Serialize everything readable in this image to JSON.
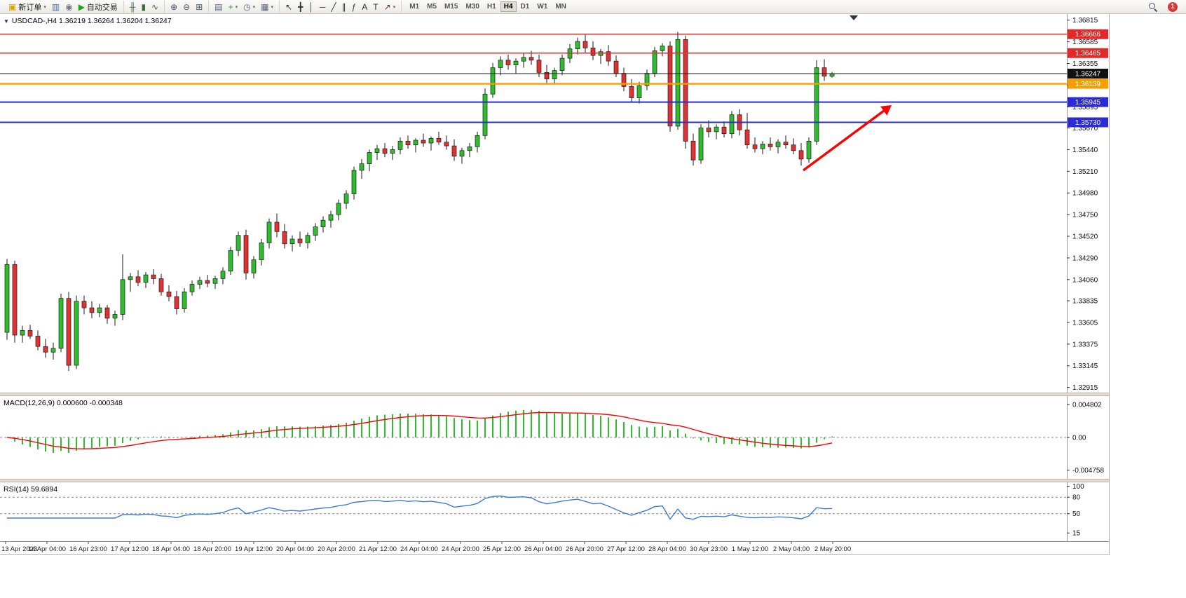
{
  "icons": {
    "dropdown": "▼"
  },
  "toolbar": {
    "groups": [
      {
        "name": "trading",
        "items": [
          {
            "name": "new-order-button",
            "glyph": "▣",
            "glyph_color": "#d9a400",
            "label": "新订单",
            "caret": "▾"
          },
          {
            "name": "charts-button",
            "glyph": "▥",
            "glyph_color": "#4a6fa5"
          },
          {
            "name": "navigator-button",
            "glyph": "◉",
            "glyph_color": "#767d88"
          },
          {
            "name": "auto-trading-button",
            "glyph": "▶",
            "glyph_color": "#1fa51f",
            "label": "自动交易"
          }
        ]
      },
      {
        "name": "chart-types",
        "items": [
          {
            "name": "ohlc-bars-button",
            "glyph": "╫",
            "glyph_color": "#3c6e3c"
          },
          {
            "name": "candlestick-button",
            "glyph": "▮",
            "glyph_color": "#3c6e3c"
          },
          {
            "name": "line-chart-button",
            "glyph": "∿",
            "glyph_color": "#3c6e3c"
          }
        ]
      },
      {
        "name": "zoom",
        "items": [
          {
            "name": "zoom-in-button",
            "glyph": "⊕",
            "glyph_color": "#44506a"
          },
          {
            "name": "zoom-out-button",
            "glyph": "⊖",
            "glyph_color": "#44506a"
          },
          {
            "name": "tile-windows-button",
            "glyph": "⊞",
            "glyph_color": "#44506a"
          }
        ]
      },
      {
        "name": "chart-management",
        "items": [
          {
            "name": "arrange-windows-button",
            "glyph": "▤",
            "glyph_color": "#55617a"
          },
          {
            "name": "indicators-button",
            "glyph": "+",
            "glyph_color": "#1fa51f",
            "caret": "▾"
          },
          {
            "name": "periods-button",
            "glyph": "◷",
            "glyph_color": "#55617a",
            "caret": "▾"
          },
          {
            "name": "templates-button",
            "glyph": "▦",
            "glyph_color": "#55617a",
            "caret": "▾"
          }
        ]
      },
      {
        "name": "drawing-tools",
        "items": [
          {
            "name": "cursor-button",
            "glyph": "↖",
            "glyph_color": "#333333"
          },
          {
            "name": "crosshair-button",
            "glyph": "╋",
            "glyph_color": "#333333"
          },
          {
            "name": "vertical-line-button",
            "glyph": "│",
            "glyph_color": "#333333"
          },
          {
            "name": "horizontal-line-button",
            "glyph": "─",
            "glyph_color": "#333333"
          },
          {
            "name": "trendline-button",
            "glyph": "╱",
            "glyph_color": "#333333"
          },
          {
            "name": "equidistant-channel-button",
            "glyph": "∥",
            "glyph_color": "#333333"
          },
          {
            "name": "fibonacci-button",
            "glyph": "ƒ",
            "glyph_color": "#333333"
          },
          {
            "name": "text-button",
            "glyph": "A",
            "glyph_color": "#333333"
          },
          {
            "name": "text-label-button",
            "glyph": "T",
            "glyph_color": "#333333"
          },
          {
            "name": "arrows-button",
            "glyph": "↗",
            "glyph_color": "#8a2525",
            "caret": "▾"
          }
        ]
      }
    ],
    "timeframes": {
      "options": [
        "M1",
        "M5",
        "M15",
        "M30",
        "H1",
        "H4",
        "D1",
        "W1",
        "MN"
      ],
      "active": "H4"
    },
    "right": {
      "notification_count": "1"
    }
  },
  "chart_data": {
    "type": "candlestick",
    "symbol": "USDCAD",
    "timeframe": "H4",
    "title": "USDCAD-,H4  1.36219 1.36264 1.36204 1.36247",
    "bull_color": "#2DBE2D",
    "bear_color": "#E03232",
    "arrow_color": "#FF0000",
    "price_ticks": [
      "1.36815",
      "1.36585",
      "1.36355",
      "1.36125",
      "1.35895",
      "1.35670",
      "1.35440",
      "1.35210",
      "1.34980",
      "1.34750",
      "1.34520",
      "1.34290",
      "1.34060",
      "1.33835",
      "1.33605",
      "1.33375",
      "1.33145",
      "1.32915"
    ],
    "levels": [
      {
        "price": 1.36666,
        "badge": "1.36666",
        "color": "#E02A2A",
        "width": 1.4
      },
      {
        "price": 1.36465,
        "badge": "1.36465",
        "color": "#E02A2A",
        "width": 1.4
      },
      {
        "price": 1.36139,
        "badge": "1.36139",
        "color": "#F59E00",
        "width": 2.4
      },
      {
        "price": 1.35945,
        "badge": "1.35945",
        "color": "#2B2BD4",
        "width": 2
      },
      {
        "price": 1.3573,
        "badge": "1.35730",
        "color": "#2B2BD4",
        "width": 2
      }
    ],
    "current_price": {
      "price": 1.36247,
      "badge": "1.36247",
      "color": "#1A1A1A"
    },
    "candles": [
      [
        1.335,
        1.3428,
        1.3342,
        1.3422
      ],
      [
        1.3422,
        1.3426,
        1.3339,
        1.3347
      ],
      [
        1.3347,
        1.3357,
        1.3339,
        1.3352
      ],
      [
        1.3352,
        1.3358,
        1.3343,
        1.3346
      ],
      [
        1.3346,
        1.3352,
        1.3331,
        1.3335
      ],
      [
        1.3335,
        1.3343,
        1.3323,
        1.3329
      ],
      [
        1.3329,
        1.3339,
        1.3321,
        1.3333
      ],
      [
        1.3333,
        1.3391,
        1.3329,
        1.3386
      ],
      [
        1.3386,
        1.3393,
        1.3309,
        1.3315
      ],
      [
        1.3315,
        1.3389,
        1.3311,
        1.3383
      ],
      [
        1.3383,
        1.3389,
        1.3369,
        1.3376
      ],
      [
        1.3376,
        1.3383,
        1.3365,
        1.3371
      ],
      [
        1.3371,
        1.338,
        1.3366,
        1.3376
      ],
      [
        1.3376,
        1.3379,
        1.3359,
        1.3365
      ],
      [
        1.3365,
        1.3373,
        1.3357,
        1.3369
      ],
      [
        1.3369,
        1.3433,
        1.3363,
        1.3406
      ],
      [
        1.3406,
        1.3413,
        1.3393,
        1.3409
      ],
      [
        1.3409,
        1.3416,
        1.3399,
        1.3403
      ],
      [
        1.3403,
        1.3414,
        1.3397,
        1.3411
      ],
      [
        1.3411,
        1.3417,
        1.3401,
        1.3407
      ],
      [
        1.3407,
        1.3412,
        1.3389,
        1.3393
      ],
      [
        1.3393,
        1.34,
        1.3383,
        1.3388
      ],
      [
        1.3388,
        1.3394,
        1.3369,
        1.3375
      ],
      [
        1.3375,
        1.3397,
        1.3371,
        1.3393
      ],
      [
        1.3393,
        1.3405,
        1.3389,
        1.3401
      ],
      [
        1.3401,
        1.3409,
        1.3396,
        1.3405
      ],
      [
        1.3405,
        1.3411,
        1.3398,
        1.3402
      ],
      [
        1.3402,
        1.341,
        1.3396,
        1.3407
      ],
      [
        1.3407,
        1.3419,
        1.3401,
        1.3415
      ],
      [
        1.3415,
        1.3441,
        1.3411,
        1.3437
      ],
      [
        1.3437,
        1.3457,
        1.3431,
        1.3453
      ],
      [
        1.3453,
        1.3459,
        1.3406,
        1.3413
      ],
      [
        1.3413,
        1.3431,
        1.3407,
        1.3427
      ],
      [
        1.3427,
        1.3449,
        1.3421,
        1.3445
      ],
      [
        1.3445,
        1.3471,
        1.3439,
        1.3467
      ],
      [
        1.3467,
        1.3476,
        1.3451,
        1.3457
      ],
      [
        1.3457,
        1.3465,
        1.3439,
        1.3444
      ],
      [
        1.3444,
        1.3453,
        1.3436,
        1.3449
      ],
      [
        1.3449,
        1.3457,
        1.3441,
        1.3445
      ],
      [
        1.3445,
        1.3456,
        1.3439,
        1.3453
      ],
      [
        1.3453,
        1.3466,
        1.3447,
        1.3462
      ],
      [
        1.3462,
        1.3473,
        1.3456,
        1.3469
      ],
      [
        1.3469,
        1.3479,
        1.3461,
        1.3475
      ],
      [
        1.3475,
        1.3491,
        1.3469,
        1.3487
      ],
      [
        1.3487,
        1.3501,
        1.3481,
        1.3497
      ],
      [
        1.3497,
        1.3526,
        1.3491,
        1.3522
      ],
      [
        1.3522,
        1.3534,
        1.3513,
        1.3529
      ],
      [
        1.3529,
        1.3544,
        1.3521,
        1.3541
      ],
      [
        1.3541,
        1.3549,
        1.3533,
        1.3545
      ],
      [
        1.3545,
        1.3551,
        1.3536,
        1.354
      ],
      [
        1.354,
        1.3548,
        1.3533,
        1.3544
      ],
      [
        1.3544,
        1.3557,
        1.3539,
        1.3553
      ],
      [
        1.3553,
        1.3559,
        1.3545,
        1.3549
      ],
      [
        1.3549,
        1.3556,
        1.3541,
        1.3554
      ],
      [
        1.3554,
        1.3561,
        1.3547,
        1.3551
      ],
      [
        1.3551,
        1.3558,
        1.3543,
        1.3556
      ],
      [
        1.3556,
        1.3563,
        1.3549,
        1.3552
      ],
      [
        1.3552,
        1.3559,
        1.3544,
        1.3548
      ],
      [
        1.3548,
        1.3555,
        1.3532,
        1.3537
      ],
      [
        1.3537,
        1.3546,
        1.3529,
        1.3543
      ],
      [
        1.3543,
        1.3551,
        1.3536,
        1.3547
      ],
      [
        1.3547,
        1.3563,
        1.3541,
        1.3559
      ],
      [
        1.3559,
        1.3609,
        1.3555,
        1.3603
      ],
      [
        1.3603,
        1.3636,
        1.3599,
        1.3631
      ],
      [
        1.3631,
        1.3643,
        1.3623,
        1.3639
      ],
      [
        1.3639,
        1.3645,
        1.3629,
        1.3634
      ],
      [
        1.3634,
        1.3641,
        1.3625,
        1.3638
      ],
      [
        1.3638,
        1.3646,
        1.3631,
        1.3642
      ],
      [
        1.3642,
        1.3649,
        1.3634,
        1.3639
      ],
      [
        1.3639,
        1.3645,
        1.3621,
        1.3626
      ],
      [
        1.3626,
        1.3634,
        1.3614,
        1.3619
      ],
      [
        1.3619,
        1.3631,
        1.3613,
        1.3628
      ],
      [
        1.3628,
        1.3645,
        1.3623,
        1.3641
      ],
      [
        1.3641,
        1.3656,
        1.3636,
        1.3651
      ],
      [
        1.3651,
        1.3663,
        1.3645,
        1.3659
      ],
      [
        1.3659,
        1.3666,
        1.3647,
        1.3652
      ],
      [
        1.3652,
        1.3659,
        1.3639,
        1.3644
      ],
      [
        1.3644,
        1.3651,
        1.3635,
        1.3648
      ],
      [
        1.3648,
        1.3655,
        1.3633,
        1.3638
      ],
      [
        1.3638,
        1.3644,
        1.3621,
        1.3625
      ],
      [
        1.3625,
        1.3631,
        1.3606,
        1.3611
      ],
      [
        1.3611,
        1.3619,
        1.3594,
        1.3599
      ],
      [
        1.3599,
        1.3616,
        1.3593,
        1.3612
      ],
      [
        1.3612,
        1.3629,
        1.3607,
        1.3625
      ],
      [
        1.3625,
        1.3653,
        1.3621,
        1.3649
      ],
      [
        1.3649,
        1.3657,
        1.3643,
        1.3654
      ],
      [
        1.3654,
        1.3659,
        1.3563,
        1.3569
      ],
      [
        1.3569,
        1.3669,
        1.3565,
        1.3661
      ],
      [
        1.3661,
        1.3665,
        1.3545,
        1.3553
      ],
      [
        1.3553,
        1.3561,
        1.3527,
        1.3533
      ],
      [
        1.3533,
        1.3571,
        1.3529,
        1.3567
      ],
      [
        1.3567,
        1.3575,
        1.3557,
        1.3563
      ],
      [
        1.3563,
        1.3571,
        1.3555,
        1.3568
      ],
      [
        1.3568,
        1.3574,
        1.3557,
        1.3561
      ],
      [
        1.3561,
        1.3585,
        1.3556,
        1.3581
      ],
      [
        1.3581,
        1.3587,
        1.3559,
        1.3565
      ],
      [
        1.3565,
        1.3583,
        1.3545,
        1.3549
      ],
      [
        1.3549,
        1.3557,
        1.3541,
        1.3545
      ],
      [
        1.3545,
        1.3553,
        1.3539,
        1.355
      ],
      [
        1.355,
        1.3557,
        1.3543,
        1.3547
      ],
      [
        1.3547,
        1.3555,
        1.354,
        1.3552
      ],
      [
        1.3552,
        1.3559,
        1.3545,
        1.3549
      ],
      [
        1.3549,
        1.3556,
        1.3539,
        1.3543
      ],
      [
        1.3543,
        1.3551,
        1.3527,
        1.3534
      ],
      [
        1.3534,
        1.3557,
        1.353,
        1.3553
      ],
      [
        1.3553,
        1.3639,
        1.3549,
        1.3631
      ],
      [
        1.3631,
        1.364,
        1.3617,
        1.3622
      ],
      [
        1.36219,
        1.36264,
        1.36204,
        1.36247
      ]
    ],
    "indicators": {
      "macd": {
        "label": "MACD(12,26,9) 0.000600 -0.000348",
        "params": [
          12,
          26,
          9
        ],
        "ticks": [
          "0.004802",
          "0.00",
          "-0.004758"
        ],
        "histogram_color": "#2DBE2D",
        "signal_color": "#FF0000"
      },
      "rsi": {
        "label": "RSI(14) 59.6894",
        "period": 14,
        "ticks": [
          "100",
          "80",
          "50",
          "15"
        ],
        "levels": [
          80,
          50
        ],
        "line_color": "#3A7BD5"
      }
    },
    "time_labels": [
      "13 Apr 2023",
      "14 Apr 04:00",
      "16 Apr 23:00",
      "17 Apr 12:00",
      "18 Apr 04:00",
      "18 Apr 20:00",
      "19 Apr 12:00",
      "20 Apr 04:00",
      "20 Apr 20:00",
      "21 Apr 12:00",
      "24 Apr 04:00",
      "24 Apr 20:00",
      "25 Apr 12:00",
      "26 Apr 04:00",
      "26 Apr 20:00",
      "27 Apr 12:00",
      "28 Apr 04:00",
      "30 Apr 23:00",
      "1 May 12:00",
      "2 May 04:00",
      "2 May 20:00"
    ]
  }
}
